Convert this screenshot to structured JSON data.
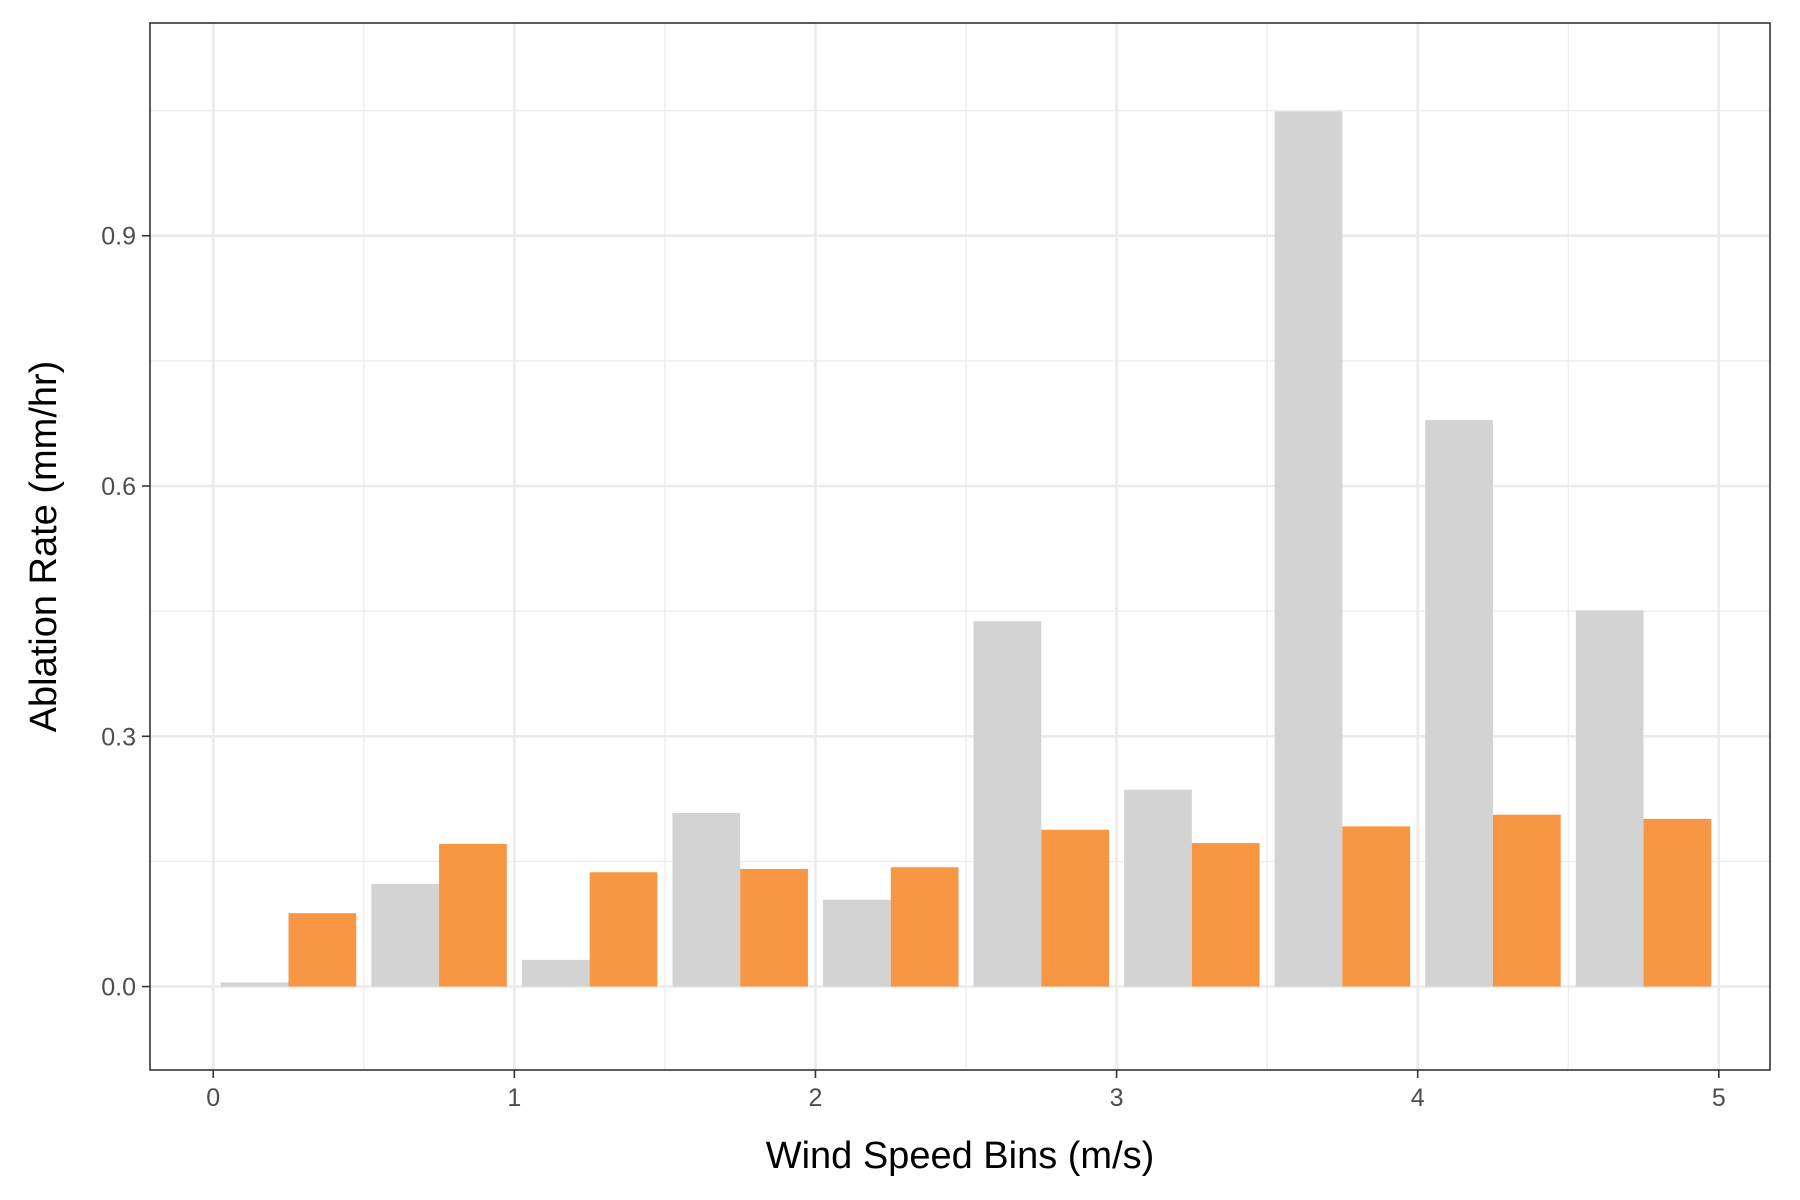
{
  "chart_data": {
    "type": "bar",
    "xlabel": "Wind Speed Bins (m/s)",
    "ylabel": "Ablation Rate (mm/hr)",
    "xlim": [
      -0.21,
      5.17
    ],
    "ylim": [
      -0.1,
      1.155
    ],
    "x_ticks": [
      0,
      1,
      2,
      3,
      4,
      5
    ],
    "x_tick_labels": [
      "0",
      "1",
      "2",
      "3",
      "4",
      "5"
    ],
    "y_ticks": [
      0.0,
      0.3,
      0.6,
      0.9
    ],
    "y_tick_labels": [
      "0.0",
      "0.3",
      "0.6",
      "0.9"
    ],
    "grid": true,
    "bar_width": 0.225,
    "bin_centers": [
      0.25,
      0.75,
      1.25,
      1.75,
      2.25,
      2.75,
      3.25,
      3.75,
      4.25,
      4.75
    ],
    "series": [
      {
        "color": "#d3d3d3",
        "values": [
          0.005,
          0.123,
          0.032,
          0.208,
          0.104,
          0.438,
          0.236,
          1.049,
          0.679,
          0.451
        ]
      },
      {
        "color": "#f79643",
        "values": [
          0.088,
          0.171,
          0.137,
          0.141,
          0.143,
          0.188,
          0.172,
          0.192,
          0.206,
          0.201
        ]
      }
    ]
  }
}
